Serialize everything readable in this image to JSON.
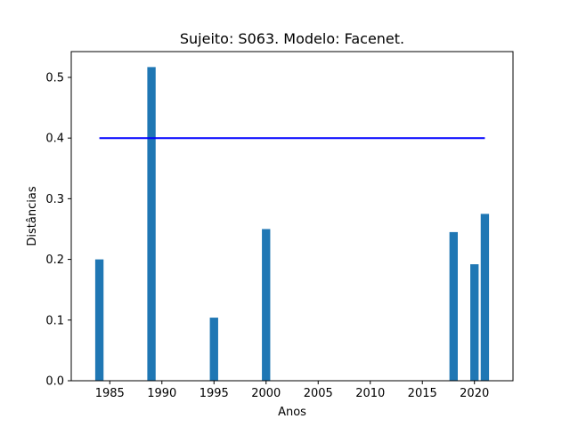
{
  "chart_data": {
    "type": "bar",
    "title": "Sujeito: S063. Modelo: Facenet.",
    "xlabel": "Anos",
    "ylabel": "Distâncias",
    "xlim": [
      1981.3,
      2023.7
    ],
    "ylim": [
      0,
      0.5425
    ],
    "x_ticks": [
      1985,
      1990,
      1995,
      2000,
      2005,
      2010,
      2015,
      2020
    ],
    "y_ticks": [
      0.0,
      0.1,
      0.2,
      0.3,
      0.4,
      0.5
    ],
    "x_tick_labels": [
      "1985",
      "1990",
      "1995",
      "2000",
      "2005",
      "2010",
      "2015",
      "2020"
    ],
    "y_tick_labels": [
      "0.0",
      "0.1",
      "0.2",
      "0.3",
      "0.4",
      "0.5"
    ],
    "bar_color": "#1f77b4",
    "bar_width_years": 0.8,
    "series": [
      {
        "x": [
          1984,
          1989,
          1995,
          2000,
          2018,
          2020,
          2021
        ],
        "values": [
          0.2,
          0.517,
          0.104,
          0.25,
          0.245,
          0.192,
          0.275
        ]
      }
    ],
    "threshold": {
      "x": [
        1984,
        2021
      ],
      "value": 0.4,
      "color": "#0000ff"
    },
    "grid": false,
    "legend": "none"
  }
}
